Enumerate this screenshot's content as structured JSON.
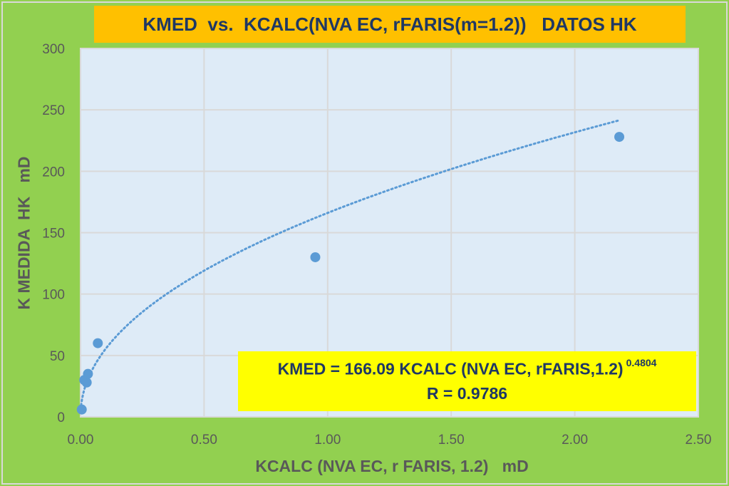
{
  "chart_data": {
    "type": "scatter",
    "title": "KMED  vs.  KCALC(NVA EC, rFARIS(m=1.2))   DATOS HK",
    "xlabel": "KCALC (NVA EC, r FARIS, 1.2)   mD",
    "ylabel": "K MEDIDA  HK   mD",
    "xlim": [
      0,
      2.5
    ],
    "ylim": [
      0,
      300
    ],
    "x_ticks": [
      "0.00",
      "0.50",
      "1.00",
      "1.50",
      "2.00",
      "2.50"
    ],
    "y_ticks": [
      "0",
      "50",
      "100",
      "150",
      "200",
      "250",
      "300"
    ],
    "grid": true,
    "points": [
      {
        "x": 0.005,
        "y": 6
      },
      {
        "x": 0.015,
        "y": 30
      },
      {
        "x": 0.025,
        "y": 28
      },
      {
        "x": 0.03,
        "y": 35
      },
      {
        "x": 0.07,
        "y": 60
      },
      {
        "x": 0.95,
        "y": 130
      },
      {
        "x": 2.18,
        "y": 228
      }
    ],
    "trendline": {
      "type": "power",
      "coefficient": 166.09,
      "exponent": 0.4804,
      "x_range": [
        0.001,
        2.18
      ],
      "style": "dotted"
    },
    "annotation": {
      "equation": "KMED = 166.09 KCALC (NVA EC, rFARIS,1.2)",
      "exponent": "0.4804",
      "r_text": "R = 0.9786"
    },
    "colors": {
      "background": "#92D050",
      "plot_area": "#DEEBF7",
      "marker": "#5B9BD5",
      "title_box": "#FFC000",
      "equation_box": "#FFFF00",
      "title_text": "#1F3864",
      "axis_text": "#595959"
    }
  }
}
